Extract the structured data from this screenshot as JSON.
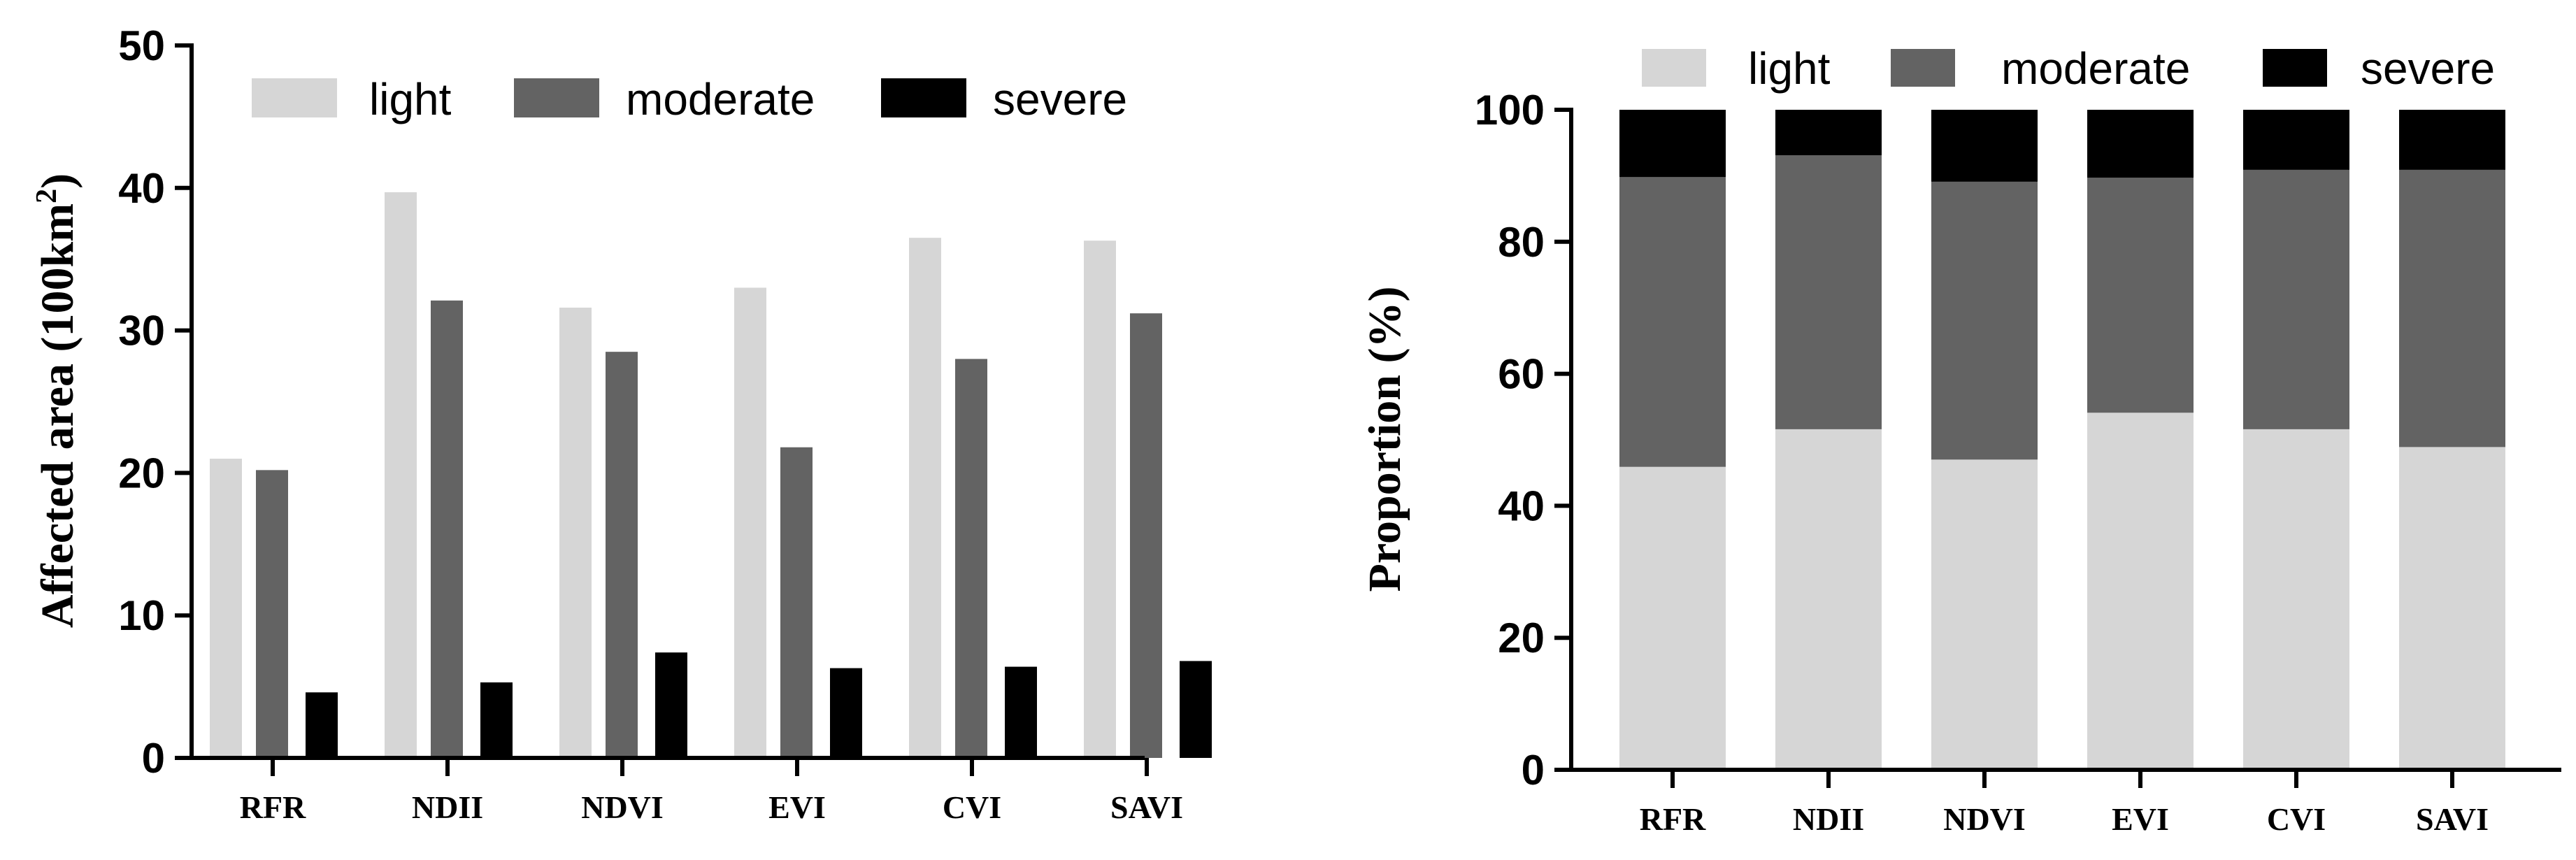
{
  "colors": {
    "light": "#d6d6d6",
    "moderate": "#636363",
    "severe": "#000000"
  },
  "chart_data": [
    {
      "id": "affected-area",
      "type": "bar",
      "title": "",
      "xlabel": "",
      "ylabel": "Affected area (100km",
      "ylabel_sup": "2",
      "ylabel_close": ")",
      "ylim": [
        0,
        50
      ],
      "yticks": [
        0,
        10,
        20,
        30,
        40,
        50
      ],
      "categories": [
        "RFR",
        "NDII",
        "NDVI",
        "EVI",
        "CVI",
        "SAVI"
      ],
      "series": [
        {
          "name": "light",
          "values": [
            21.0,
            39.7,
            31.6,
            33.0,
            36.5,
            36.3
          ]
        },
        {
          "name": "moderate",
          "values": [
            20.2,
            32.1,
            28.5,
            21.8,
            28.0,
            31.2
          ]
        },
        {
          "name": "severe",
          "values": [
            4.6,
            5.3,
            7.4,
            6.3,
            6.4,
            6.8
          ]
        }
      ],
      "legend": "top"
    },
    {
      "id": "proportion",
      "type": "bar",
      "stacked": true,
      "title": "",
      "xlabel": "",
      "ylabel": "Proportion (%)",
      "ylim": [
        0,
        100
      ],
      "yticks": [
        0,
        20,
        40,
        60,
        80,
        100
      ],
      "categories": [
        "RFR",
        "NDII",
        "NDVI",
        "EVI",
        "CVI",
        "SAVI"
      ],
      "series": [
        {
          "name": "light",
          "values": [
            45.9,
            51.6,
            47.0,
            54.1,
            51.6,
            48.9
          ]
        },
        {
          "name": "moderate",
          "values": [
            43.9,
            41.5,
            42.1,
            35.6,
            39.3,
            42.0
          ]
        },
        {
          "name": "severe",
          "values": [
            10.2,
            6.9,
            10.9,
            10.3,
            9.1,
            9.1
          ]
        }
      ],
      "legend": "top"
    }
  ]
}
